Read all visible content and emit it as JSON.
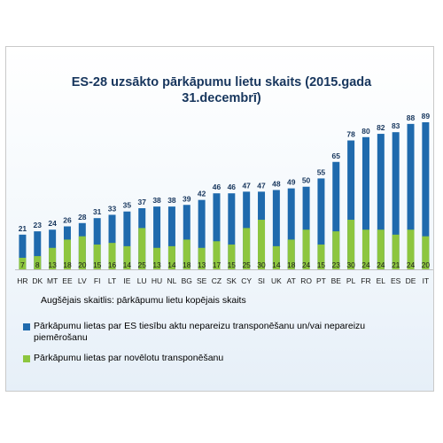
{
  "colors": {
    "total": "#1f6aad",
    "green": "#8dc63f",
    "title": "#17365d"
  },
  "chart_data": {
    "type": "bar",
    "title_lines": [
      "ES-28 uzsākto pārkāpumu lietu skaits (2015.gada",
      "31.decembrī)"
    ],
    "categories": [
      "HR",
      "DK",
      "MT",
      "EE",
      "LV",
      "FI",
      "LT",
      "IE",
      "LU",
      "HU",
      "NL",
      "BG",
      "SE",
      "CZ",
      "SK",
      "CY",
      "SI",
      "UK",
      "AT",
      "RO",
      "PT",
      "BE",
      "PL",
      "FR",
      "EL",
      "ES",
      "DE",
      "IT"
    ],
    "series": [
      {
        "name": "Pārkāpumu lietas par ES tiesību aktu nepareizu transponēšanu un/vai nepareizu piemērošanu",
        "values": [
          21,
          23,
          24,
          26,
          28,
          31,
          33,
          35,
          37,
          38,
          38,
          39,
          42,
          46,
          46,
          47,
          47,
          48,
          49,
          50,
          55,
          65,
          78,
          80,
          82,
          83,
          88,
          89
        ]
      },
      {
        "name": "Pārkāpumu lietas par novēlotu transponēšanu",
        "values": [
          7,
          8,
          13,
          18,
          20,
          15,
          16,
          14,
          25,
          13,
          14,
          18,
          13,
          17,
          15,
          25,
          30,
          14,
          18,
          24,
          15,
          23,
          30,
          24,
          24,
          21,
          24,
          20
        ]
      }
    ],
    "note": "Augšējais skaitlis: pārkāpumu lietu kopējais skaits",
    "ylim": [
      0,
      89
    ]
  }
}
